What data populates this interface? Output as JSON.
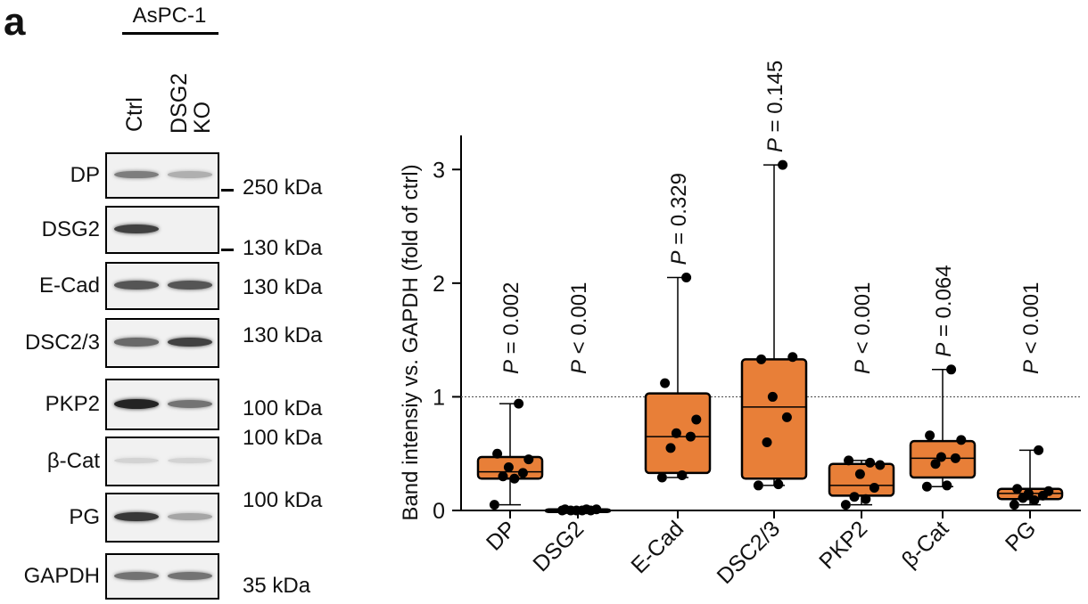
{
  "panel_letter": "a",
  "cell_line": "AsPC-1",
  "lanes": [
    "Ctrl",
    "DSG2\nKO"
  ],
  "blots": [
    {
      "protein": "DP",
      "mw": "250 kDa",
      "ctrl": 0.55,
      "ko": 0.3
    },
    {
      "protein": "DSG2",
      "mw": "130 kDa",
      "ctrl": 0.85,
      "ko": 0.0
    },
    {
      "protein": "E-Cad",
      "mw": "130 kDa",
      "ctrl": 0.75,
      "ko": 0.75
    },
    {
      "protein": "DSC2/3",
      "mw": "130 kDa",
      "ctrl": 0.65,
      "ko": 0.85
    },
    {
      "protein": "PKP2",
      "mw": "100 kDa",
      "ctrl": 1.0,
      "ko": 0.6
    },
    {
      "protein": "β-Cat",
      "mw": "100 kDa",
      "ctrl": 0.12,
      "ko": 0.12
    },
    {
      "protein": "PG",
      "mw": "100 kDa",
      "ctrl": 0.9,
      "ko": 0.35
    },
    {
      "protein": "GAPDH",
      "mw": "35 kDa",
      "ctrl": 0.6,
      "ko": 0.6
    }
  ],
  "chart_data": {
    "type": "box",
    "ylabel": "Band intensiy vs. GAPDH (fold of ctrl)",
    "ylim": [
      0,
      3.3
    ],
    "yticks": [
      0,
      1,
      2,
      3
    ],
    "reference_line": 1,
    "box_color": "#e87f38",
    "categories": [
      "DP",
      "DSG2",
      "E-Cad",
      "DSC2/3",
      "PKP2",
      "β-Cat",
      "PG"
    ],
    "p_values": [
      "P = 0.002",
      "P < 0.001",
      "P = 0.329",
      "P = 0.145",
      "P < 0.001",
      "P = 0.064",
      "P < 0.001"
    ],
    "boxes": [
      {
        "min": 0.05,
        "q1": 0.28,
        "median": 0.34,
        "q3": 0.47,
        "max": 0.94,
        "points": [
          0.05,
          0.28,
          0.3,
          0.33,
          0.38,
          0.45,
          0.5,
          0.94
        ]
      },
      {
        "min": 0.0,
        "q1": 0.0,
        "median": 0.0,
        "q3": 0.01,
        "max": 0.01,
        "points": [
          0.0,
          0.0,
          0.0,
          0.0,
          0.0,
          0.01,
          0.01,
          0.01
        ]
      },
      {
        "min": 0.29,
        "q1": 0.33,
        "median": 0.65,
        "q3": 1.03,
        "max": 2.05,
        "points": [
          0.29,
          0.31,
          0.55,
          0.65,
          0.68,
          0.8,
          1.12,
          2.05
        ]
      },
      {
        "min": 0.22,
        "q1": 0.28,
        "median": 0.91,
        "q3": 1.33,
        "max": 3.04,
        "points": [
          0.22,
          0.23,
          0.6,
          0.82,
          1.0,
          1.35,
          1.33,
          3.04
        ]
      },
      {
        "min": 0.05,
        "q1": 0.13,
        "median": 0.22,
        "q3": 0.41,
        "max": 0.44,
        "points": [
          0.05,
          0.1,
          0.12,
          0.2,
          0.32,
          0.4,
          0.44,
          0.42
        ]
      },
      {
        "min": 0.21,
        "q1": 0.29,
        "median": 0.46,
        "q3": 0.61,
        "max": 1.24,
        "points": [
          0.21,
          0.22,
          0.41,
          0.46,
          0.47,
          0.62,
          0.66,
          1.24
        ]
      },
      {
        "min": 0.05,
        "q1": 0.1,
        "median": 0.15,
        "q3": 0.19,
        "max": 0.53,
        "points": [
          0.05,
          0.09,
          0.11,
          0.13,
          0.15,
          0.17,
          0.19,
          0.53
        ]
      }
    ]
  }
}
